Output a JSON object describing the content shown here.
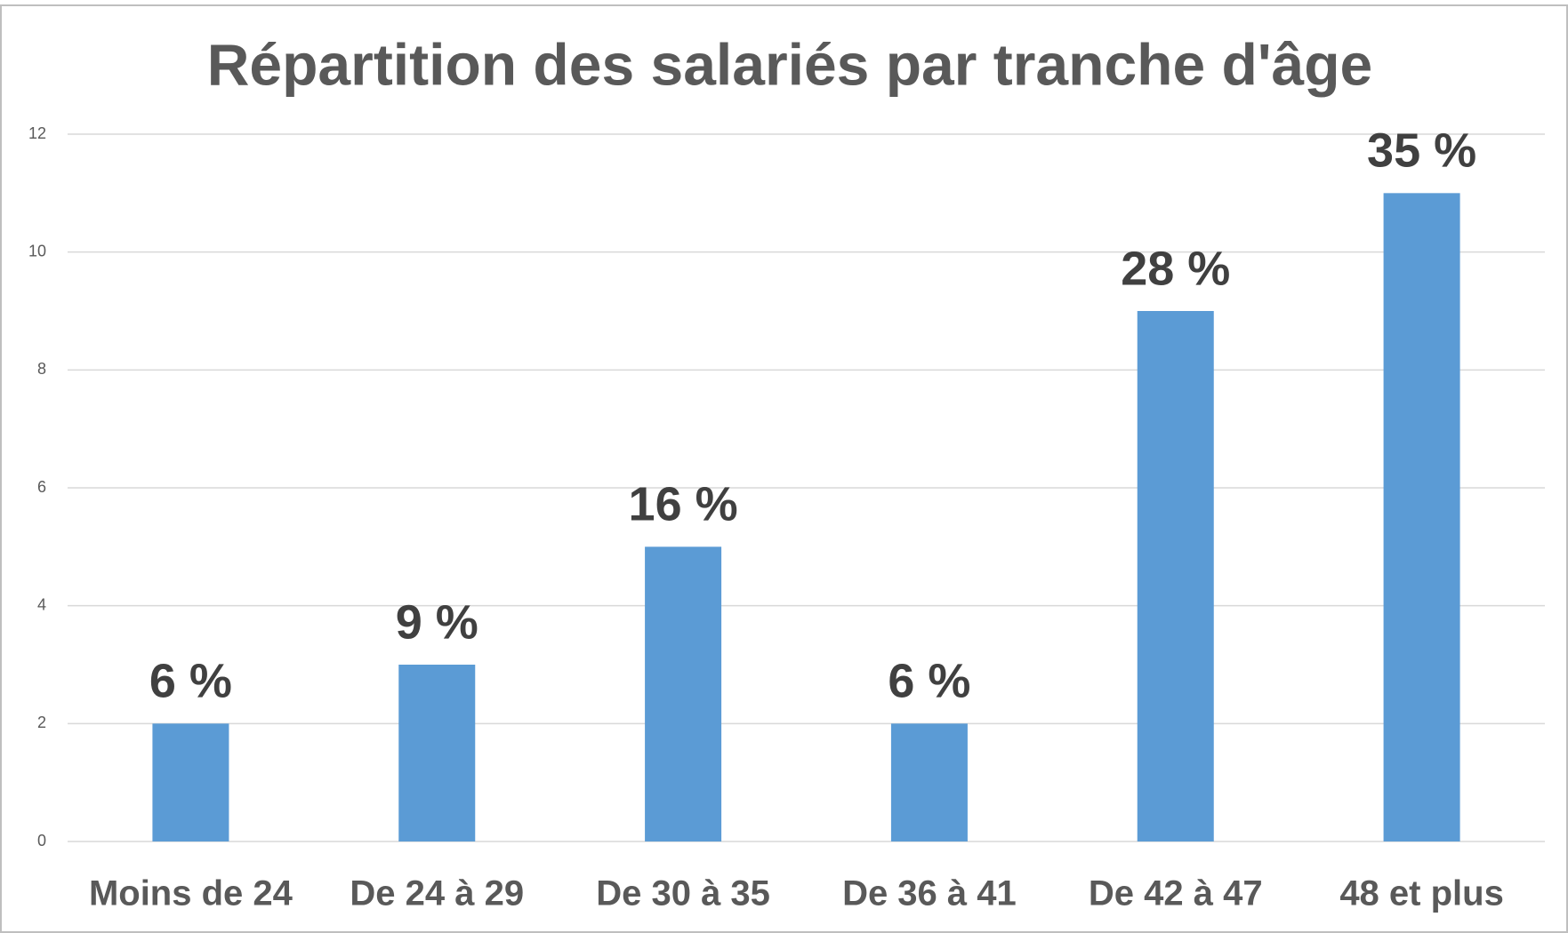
{
  "chart_data": {
    "type": "bar",
    "title": "Répartition des salariés par tranche d'âge",
    "categories": [
      "Moins de 24",
      "De 24 à 29",
      "De 30 à 35",
      "De 36 à 41",
      "De 42 à 47",
      "48 et plus"
    ],
    "values": [
      2,
      3,
      5,
      2,
      9,
      11
    ],
    "annotations": [
      "6 %",
      "9 %",
      "16 %",
      "6 %",
      "28 %",
      "35 %"
    ],
    "color": "#5b9bd5",
    "ylim": [
      0,
      12
    ],
    "yticks": [
      0,
      2,
      4,
      6,
      8,
      10,
      12
    ],
    "grid": true
  }
}
